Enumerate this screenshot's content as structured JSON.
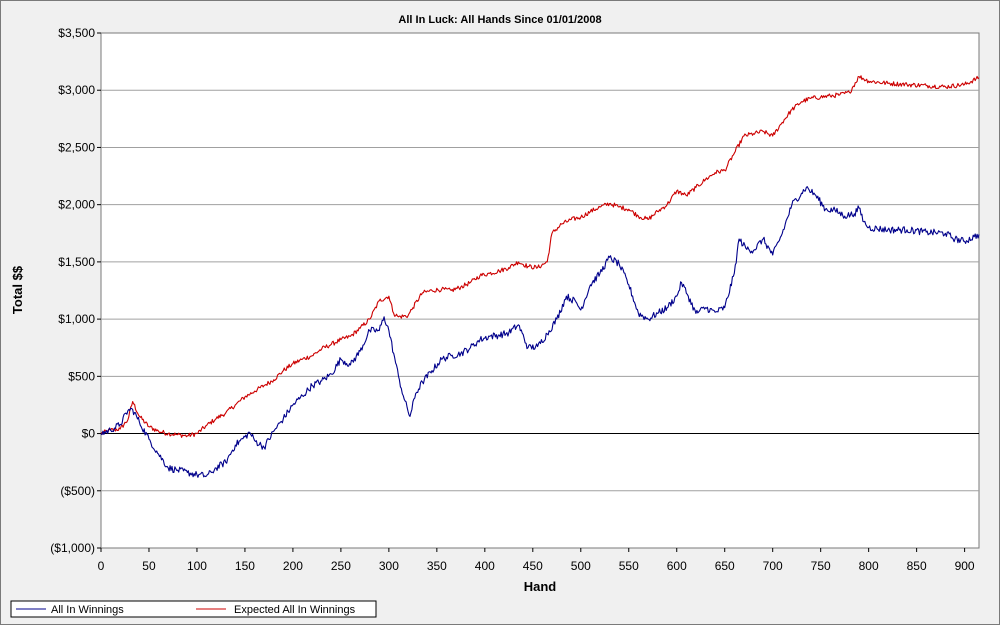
{
  "chart_data": {
    "type": "line",
    "title": "All In Luck: All Hands Since 01/01/2008",
    "xlabel": "Hand",
    "ylabel": "Total $$",
    "xlim": [
      0,
      915
    ],
    "ylim": [
      -1000,
      3500
    ],
    "x_ticks": [
      0,
      50,
      100,
      150,
      200,
      250,
      300,
      350,
      400,
      450,
      500,
      550,
      600,
      650,
      700,
      750,
      800,
      850,
      900
    ],
    "y_ticks": [
      {
        "value": 3500,
        "label": "$3,500"
      },
      {
        "value": 3000,
        "label": "$3,000"
      },
      {
        "value": 2500,
        "label": "$2,500"
      },
      {
        "value": 2000,
        "label": "$2,000"
      },
      {
        "value": 1500,
        "label": "$1,500"
      },
      {
        "value": 1000,
        "label": "$1,000"
      },
      {
        "value": 500,
        "label": "$500"
      },
      {
        "value": 0,
        "label": "$0"
      },
      {
        "value": -500,
        "label": "($500)"
      },
      {
        "value": -1000,
        "label": "($1,000)"
      }
    ],
    "grid": "horizontal",
    "legend_position": "bottom",
    "series": [
      {
        "name": "All In Winnings",
        "color": "#00008b",
        "points": [
          [
            0,
            0
          ],
          [
            10,
            30
          ],
          [
            20,
            80
          ],
          [
            28,
            200
          ],
          [
            33,
            210
          ],
          [
            40,
            100
          ],
          [
            50,
            -50
          ],
          [
            60,
            -180
          ],
          [
            70,
            -300
          ],
          [
            80,
            -320
          ],
          [
            90,
            -340
          ],
          [
            100,
            -360
          ],
          [
            110,
            -370
          ],
          [
            115,
            -340
          ],
          [
            120,
            -300
          ],
          [
            130,
            -250
          ],
          [
            140,
            -100
          ],
          [
            150,
            -30
          ],
          [
            155,
            10
          ],
          [
            160,
            -60
          ],
          [
            170,
            -120
          ],
          [
            180,
            20
          ],
          [
            190,
            130
          ],
          [
            200,
            250
          ],
          [
            210,
            330
          ],
          [
            220,
            420
          ],
          [
            230,
            460
          ],
          [
            240,
            520
          ],
          [
            250,
            650
          ],
          [
            260,
            600
          ],
          [
            270,
            720
          ],
          [
            280,
            900
          ],
          [
            290,
            900
          ],
          [
            295,
            1020
          ],
          [
            300,
            900
          ],
          [
            305,
            700
          ],
          [
            310,
            500
          ],
          [
            316,
            300
          ],
          [
            322,
            150
          ],
          [
            328,
            350
          ],
          [
            335,
            450
          ],
          [
            345,
            550
          ],
          [
            355,
            650
          ],
          [
            365,
            680
          ],
          [
            375,
            700
          ],
          [
            385,
            750
          ],
          [
            395,
            820
          ],
          [
            405,
            850
          ],
          [
            415,
            860
          ],
          [
            425,
            880
          ],
          [
            435,
            950
          ],
          [
            445,
            750
          ],
          [
            455,
            760
          ],
          [
            465,
            870
          ],
          [
            475,
            1000
          ],
          [
            485,
            1200
          ],
          [
            495,
            1150
          ],
          [
            500,
            1080
          ],
          [
            510,
            1300
          ],
          [
            520,
            1400
          ],
          [
            530,
            1540
          ],
          [
            540,
            1480
          ],
          [
            550,
            1300
          ],
          [
            560,
            1050
          ],
          [
            570,
            1000
          ],
          [
            580,
            1050
          ],
          [
            590,
            1100
          ],
          [
            600,
            1200
          ],
          [
            605,
            1320
          ],
          [
            612,
            1200
          ],
          [
            620,
            1050
          ],
          [
            630,
            1100
          ],
          [
            640,
            1060
          ],
          [
            650,
            1100
          ],
          [
            660,
            1400
          ],
          [
            665,
            1700
          ],
          [
            672,
            1620
          ],
          [
            680,
            1600
          ],
          [
            690,
            1700
          ],
          [
            700,
            1560
          ],
          [
            710,
            1750
          ],
          [
            720,
            2000
          ],
          [
            730,
            2100
          ],
          [
            735,
            2150
          ],
          [
            745,
            2080
          ],
          [
            755,
            1960
          ],
          [
            765,
            1950
          ],
          [
            775,
            1900
          ],
          [
            785,
            1920
          ],
          [
            790,
            1970
          ],
          [
            795,
            1850
          ],
          [
            800,
            1800
          ],
          [
            820,
            1780
          ],
          [
            840,
            1780
          ],
          [
            860,
            1760
          ],
          [
            880,
            1750
          ],
          [
            890,
            1700
          ],
          [
            900,
            1680
          ],
          [
            910,
            1720
          ],
          [
            915,
            1740
          ]
        ]
      },
      {
        "name": "Expected All In Winnings",
        "color": "#cc0000",
        "points": [
          [
            0,
            0
          ],
          [
            10,
            30
          ],
          [
            20,
            40
          ],
          [
            28,
            120
          ],
          [
            33,
            280
          ],
          [
            40,
            150
          ],
          [
            50,
            60
          ],
          [
            60,
            20
          ],
          [
            70,
            0
          ],
          [
            80,
            -10
          ],
          [
            90,
            -20
          ],
          [
            100,
            0
          ],
          [
            110,
            70
          ],
          [
            120,
            130
          ],
          [
            130,
            180
          ],
          [
            140,
            250
          ],
          [
            150,
            320
          ],
          [
            160,
            370
          ],
          [
            170,
            420
          ],
          [
            180,
            470
          ],
          [
            190,
            550
          ],
          [
            200,
            610
          ],
          [
            210,
            650
          ],
          [
            220,
            680
          ],
          [
            230,
            740
          ],
          [
            240,
            780
          ],
          [
            250,
            820
          ],
          [
            260,
            850
          ],
          [
            270,
            920
          ],
          [
            280,
            1000
          ],
          [
            290,
            1160
          ],
          [
            300,
            1200
          ],
          [
            305,
            1050
          ],
          [
            310,
            1020
          ],
          [
            320,
            1030
          ],
          [
            325,
            1100
          ],
          [
            335,
            1230
          ],
          [
            345,
            1250
          ],
          [
            355,
            1260
          ],
          [
            365,
            1250
          ],
          [
            375,
            1280
          ],
          [
            385,
            1320
          ],
          [
            395,
            1380
          ],
          [
            405,
            1400
          ],
          [
            415,
            1420
          ],
          [
            425,
            1450
          ],
          [
            435,
            1500
          ],
          [
            445,
            1460
          ],
          [
            455,
            1450
          ],
          [
            465,
            1500
          ],
          [
            470,
            1750
          ],
          [
            480,
            1830
          ],
          [
            490,
            1870
          ],
          [
            500,
            1890
          ],
          [
            510,
            1940
          ],
          [
            520,
            1980
          ],
          [
            530,
            2010
          ],
          [
            540,
            1980
          ],
          [
            550,
            1960
          ],
          [
            560,
            1900
          ],
          [
            570,
            1870
          ],
          [
            580,
            1940
          ],
          [
            590,
            2000
          ],
          [
            600,
            2120
          ],
          [
            610,
            2080
          ],
          [
            620,
            2150
          ],
          [
            630,
            2220
          ],
          [
            640,
            2280
          ],
          [
            650,
            2300
          ],
          [
            660,
            2450
          ],
          [
            670,
            2600
          ],
          [
            680,
            2620
          ],
          [
            690,
            2640
          ],
          [
            700,
            2600
          ],
          [
            710,
            2720
          ],
          [
            720,
            2830
          ],
          [
            730,
            2900
          ],
          [
            740,
            2930
          ],
          [
            750,
            2940
          ],
          [
            760,
            2950
          ],
          [
            770,
            2960
          ],
          [
            780,
            2980
          ],
          [
            790,
            3120
          ],
          [
            800,
            3080
          ],
          [
            820,
            3060
          ],
          [
            840,
            3050
          ],
          [
            860,
            3040
          ],
          [
            880,
            3030
          ],
          [
            900,
            3050
          ],
          [
            915,
            3110
          ]
        ]
      }
    ]
  }
}
